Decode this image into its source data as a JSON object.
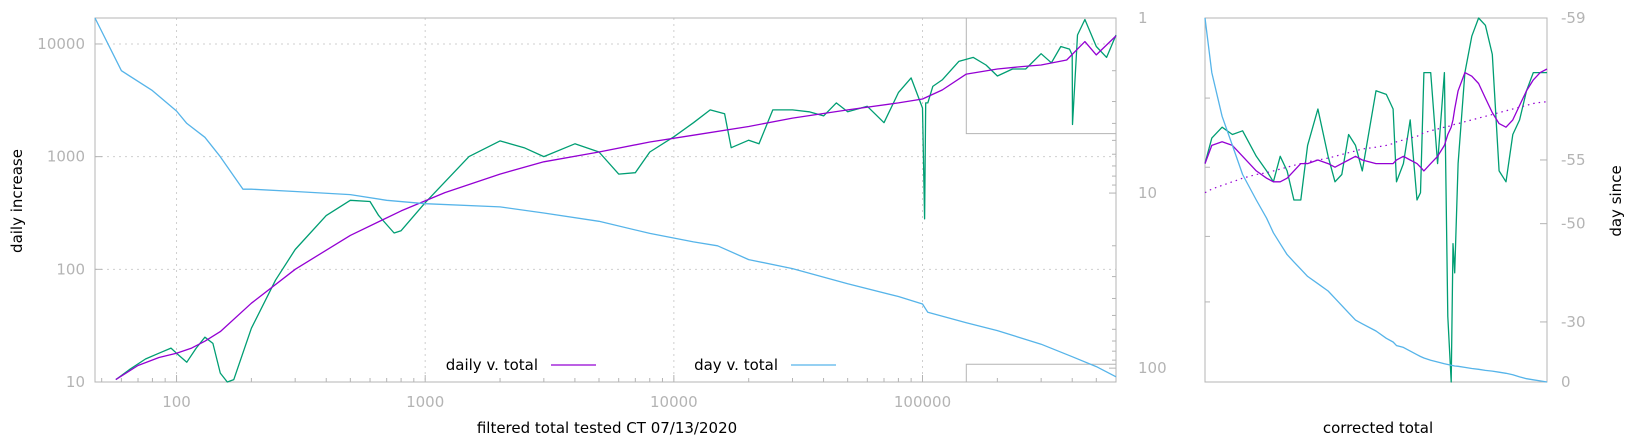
{
  "colors": {
    "axis": "#b4b4b4",
    "grid": "#cfcfcf",
    "text": "#000000",
    "tick_text": "#b4b4b4",
    "raw_series": "#009e73",
    "smooth_series": "#9400d3",
    "day_series": "#56b4e9"
  },
  "chart_data": [
    {
      "type": "line",
      "title": "",
      "xlabel": "filtered total tested CT 07/13/2020",
      "ylabel": "daily increase",
      "y2label": "",
      "x_scale": "log",
      "y_scale": "log",
      "y2_scale": "log",
      "y2_reversed": true,
      "xlim": [
        47,
        600000
      ],
      "ylim": [
        10,
        17000
      ],
      "y2lim": [
        1,
        120
      ],
      "grid": true,
      "legend_position": "bottom-center",
      "x_ticks": [
        "100",
        "1000",
        "10000",
        "100000"
      ],
      "y_ticks": [
        "10",
        "100",
        "1000",
        "10000"
      ],
      "y2_ticks": [
        "1",
        "10",
        "100"
      ],
      "inset_box": {
        "x": [
          150000,
          600000
        ],
        "y_top": [
          1,
          120
        ],
        "y_bottom": [
          17000,
          1600
        ]
      },
      "series": [
        {
          "name": "daily v. total",
          "axis": "left",
          "x": [
            57,
            70,
            85,
            100,
            115,
            130,
            150,
            200,
            300,
            500,
            800,
            1200,
            2000,
            3000,
            5000,
            8000,
            12000,
            20000,
            30000,
            50000,
            80000,
            100000,
            120000,
            150000,
            200000,
            250000,
            300000,
            380000,
            450000,
            500000,
            600000
          ],
          "values": [
            10.5,
            14,
            16.5,
            18,
            20,
            23,
            28,
            50,
            100,
            200,
            330,
            480,
            700,
            900,
            1100,
            1350,
            1550,
            1850,
            2200,
            2600,
            3000,
            3250,
            3900,
            5400,
            6000,
            6300,
            6500,
            7200,
            10500,
            8000,
            11800
          ]
        },
        {
          "name": "",
          "axis": "left",
          "x": [
            57,
            65,
            75,
            85,
            95,
            100,
            110,
            120,
            130,
            140,
            150,
            160,
            170,
            200,
            250,
            300,
            400,
            500,
            600,
            650,
            750,
            800,
            1000,
            1500,
            2000,
            2500,
            3000,
            4000,
            5000,
            6000,
            7000,
            8000,
            10000,
            12000,
            14000,
            16000,
            17000,
            20000,
            22000,
            25000,
            30000,
            35000,
            40000,
            45000,
            50000,
            60000,
            70000,
            80000,
            90000,
            100000,
            102000,
            103000,
            105000,
            110000,
            120000,
            140000,
            160000,
            180000,
            200000,
            230000,
            260000,
            300000,
            330000,
            360000,
            390000,
            400000,
            401000,
            420000,
            450000,
            500000,
            550000,
            600000
          ],
          "values": [
            10.5,
            13,
            16,
            18,
            20,
            18,
            15,
            20,
            25,
            22,
            12,
            10,
            10.5,
            30,
            80,
            150,
            300,
            410,
            400,
            300,
            210,
            220,
            390,
            1000,
            1380,
            1200,
            1000,
            1300,
            1100,
            700,
            720,
            1100,
            1500,
            2000,
            2600,
            2400,
            1200,
            1400,
            1300,
            2600,
            2600,
            2500,
            2300,
            3000,
            2500,
            2800,
            2000,
            3700,
            5000,
            2700,
            280,
            3000,
            3000,
            4200,
            4800,
            7000,
            7600,
            6500,
            5200,
            6000,
            6000,
            8200,
            6800,
            9500,
            9000,
            8000,
            1930,
            12000,
            16500,
            9500,
            7600,
            12000
          ]
        },
        {
          "name": "day v. total",
          "axis": "right",
          "x": [
            47,
            60,
            80,
            100,
            110,
            130,
            150,
            170,
            185,
            200,
            300,
            500,
            700,
            1000,
            2000,
            3000,
            5000,
            8000,
            12000,
            15000,
            20000,
            30000,
            50000,
            80000,
            100000,
            105000,
            150000,
            200000,
            300000,
            400000,
            500000,
            600000
          ],
          "values": [
            1,
            2,
            2.6,
            3.4,
            4,
            4.8,
            6.2,
            8,
            9.5,
            9.5,
            9.8,
            10.2,
            11,
            11.5,
            12,
            13,
            14.5,
            17,
            19,
            20,
            24,
            27,
            33,
            39,
            43,
            48,
            55,
            61,
            73,
            86,
            98,
            112
          ]
        }
      ]
    },
    {
      "type": "line",
      "title": "",
      "xlabel": "corrected total",
      "ylabel": "",
      "y2label": "day since",
      "y2_ticks": [
        "-59",
        "-55",
        "-50",
        "-30",
        "0"
      ],
      "x": [
        0,
        0.02,
        0.05,
        0.08,
        0.11,
        0.15,
        0.18,
        0.2,
        0.22,
        0.24,
        0.26,
        0.28,
        0.3,
        0.33,
        0.36,
        0.38,
        0.4,
        0.42,
        0.44,
        0.46,
        0.5,
        0.53,
        0.55,
        0.56,
        0.58,
        0.6,
        0.62,
        0.63,
        0.64,
        0.66,
        0.68,
        0.7,
        0.71,
        0.72,
        0.725,
        0.73,
        0.74,
        0.76,
        0.78,
        0.8,
        0.82,
        0.84,
        0.86,
        0.88,
        0.9,
        0.92,
        0.94,
        0.96,
        0.98,
        1.0
      ],
      "series": [
        {
          "name": "",
          "values": [
            0.6,
            0.67,
            0.7,
            0.68,
            0.69,
            0.62,
            0.58,
            0.55,
            0.62,
            0.58,
            0.5,
            0.5,
            0.65,
            0.75,
            0.62,
            0.55,
            0.57,
            0.68,
            0.65,
            0.58,
            0.8,
            0.79,
            0.75,
            0.55,
            0.6,
            0.72,
            0.5,
            0.52,
            0.85,
            0.85,
            0.6,
            0.85,
            0.18,
            0.0,
            0.38,
            0.3,
            0.6,
            0.85,
            0.95,
            1.0,
            0.98,
            0.9,
            0.58,
            0.55,
            0.68,
            0.72,
            0.8,
            0.85,
            0.85,
            0.85
          ]
        },
        {
          "name": "",
          "values": [
            0.6,
            0.65,
            0.66,
            0.65,
            0.62,
            0.58,
            0.56,
            0.55,
            0.55,
            0.56,
            0.58,
            0.6,
            0.6,
            0.61,
            0.6,
            0.59,
            0.6,
            0.61,
            0.62,
            0.61,
            0.6,
            0.6,
            0.6,
            0.61,
            0.62,
            0.61,
            0.6,
            0.59,
            0.58,
            0.6,
            0.62,
            0.65,
            0.68,
            0.7,
            0.72,
            0.75,
            0.8,
            0.85,
            0.84,
            0.82,
            0.78,
            0.74,
            0.71,
            0.7,
            0.72,
            0.76,
            0.8,
            0.83,
            0.85,
            0.86
          ]
        },
        {
          "name": "",
          "values": [
            0.52,
            0.53,
            0.54,
            0.55,
            0.56,
            0.57,
            0.575,
            0.58,
            0.585,
            0.59,
            0.595,
            0.6,
            0.605,
            0.61,
            0.615,
            0.62,
            0.625,
            0.63,
            0.635,
            0.64,
            0.645,
            0.65,
            0.655,
            0.66,
            0.665,
            0.67,
            0.675,
            0.68,
            0.685,
            0.69,
            0.695,
            0.7,
            0.702,
            0.704,
            0.706,
            0.708,
            0.71,
            0.715,
            0.72,
            0.725,
            0.73,
            0.735,
            0.74,
            0.745,
            0.75,
            0.755,
            0.76,
            0.765,
            0.768,
            0.77
          ]
        },
        {
          "name": "",
          "values": [
            1.0,
            0.85,
            0.73,
            0.65,
            0.57,
            0.5,
            0.45,
            0.41,
            0.38,
            0.35,
            0.33,
            0.31,
            0.29,
            0.27,
            0.25,
            0.23,
            0.21,
            0.19,
            0.17,
            0.16,
            0.14,
            0.12,
            0.11,
            0.1,
            0.095,
            0.085,
            0.075,
            0.07,
            0.066,
            0.06,
            0.055,
            0.05,
            0.048,
            0.046,
            0.045,
            0.044,
            0.043,
            0.04,
            0.037,
            0.035,
            0.032,
            0.03,
            0.027,
            0.024,
            0.02,
            0.014,
            0.009,
            0.006,
            0.003,
            0.0
          ]
        }
      ]
    }
  ]
}
